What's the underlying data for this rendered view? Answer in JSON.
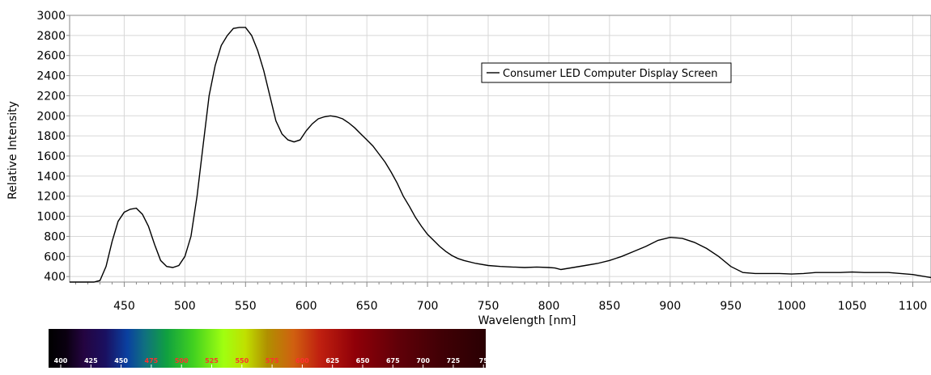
{
  "chart_data": {
    "type": "line",
    "title": "",
    "xlabel": "Wavelength [nm]",
    "ylabel": "Relative Intensity",
    "xlim": [
      405,
      1115
    ],
    "ylim": [
      345,
      3000
    ],
    "x_ticks": [
      450,
      500,
      550,
      600,
      650,
      700,
      750,
      800,
      850,
      900,
      950,
      1000,
      1050,
      1100
    ],
    "x_tick_labels": [
      "450",
      "500",
      "550",
      "600",
      "650",
      "700",
      "750",
      "800",
      "850",
      "900",
      "950",
      "1000",
      "1050",
      "1100"
    ],
    "y_ticks": [
      400,
      600,
      800,
      1000,
      1200,
      1400,
      1600,
      1800,
      2000,
      2200,
      2400,
      2600,
      2800,
      3000
    ],
    "y_tick_labels": [
      "400",
      "600",
      "800",
      "1000",
      "1200",
      "1400",
      "1600",
      "1800",
      "2000",
      "2200",
      "2400",
      "2600",
      "2800",
      "3000"
    ],
    "grid": true,
    "legend_position": "top-right",
    "series": [
      {
        "name": "Consumer LED Computer Display Screen",
        "color": "#000000",
        "x": [
          405,
          415,
          425,
          430,
          435,
          440,
          445,
          450,
          455,
          460,
          465,
          470,
          475,
          480,
          485,
          490,
          495,
          500,
          505,
          510,
          515,
          520,
          525,
          530,
          535,
          540,
          545,
          550,
          555,
          560,
          565,
          570,
          575,
          580,
          585,
          590,
          595,
          600,
          605,
          610,
          615,
          620,
          625,
          630,
          635,
          640,
          645,
          650,
          655,
          660,
          665,
          670,
          675,
          680,
          685,
          690,
          695,
          700,
          705,
          710,
          715,
          720,
          725,
          730,
          740,
          750,
          760,
          770,
          780,
          790,
          800,
          805,
          810,
          820,
          830,
          840,
          850,
          860,
          870,
          880,
          890,
          900,
          910,
          920,
          930,
          940,
          950,
          960,
          970,
          980,
          990,
          1000,
          1010,
          1020,
          1030,
          1040,
          1050,
          1060,
          1070,
          1080,
          1090,
          1100,
          1110,
          1115
        ],
        "y": [
          305,
          308,
          320,
          360,
          500,
          750,
          950,
          1040,
          1070,
          1080,
          1020,
          900,
          720,
          560,
          500,
          490,
          510,
          600,
          800,
          1200,
          1700,
          2200,
          2500,
          2700,
          2800,
          2870,
          2880,
          2880,
          2800,
          2650,
          2450,
          2200,
          1950,
          1820,
          1760,
          1740,
          1760,
          1850,
          1920,
          1970,
          1990,
          2000,
          1990,
          1970,
          1930,
          1880,
          1820,
          1760,
          1700,
          1620,
          1540,
          1440,
          1330,
          1200,
          1100,
          990,
          900,
          820,
          760,
          700,
          650,
          610,
          580,
          560,
          530,
          510,
          500,
          495,
          490,
          495,
          490,
          485,
          470,
          490,
          510,
          530,
          560,
          600,
          650,
          700,
          760,
          790,
          780,
          740,
          680,
          600,
          500,
          440,
          430,
          430,
          430,
          425,
          430,
          440,
          440,
          440,
          445,
          440,
          440,
          440,
          430,
          420,
          400,
          390
        ]
      }
    ]
  },
  "spectrum_bar": {
    "labels": [
      "400",
      "425",
      "450",
      "475",
      "500",
      "525",
      "550",
      "575",
      "600",
      "625",
      "650",
      "675",
      "700",
      "725",
      "75"
    ],
    "label_colors": [
      "#ffffff",
      "#ffffff",
      "#ffffff",
      "#ff3030",
      "#ff3030",
      "#ff3030",
      "#ff3030",
      "#ff3030",
      "#ff3030",
      "#ffffff",
      "#ffffff",
      "#ffffff",
      "#ffffff",
      "#ffffff",
      "#ffffff"
    ]
  }
}
